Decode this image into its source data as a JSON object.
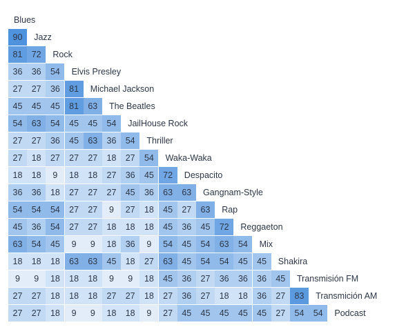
{
  "matrix": {
    "type": "table",
    "labels": [
      "Blues",
      "Jazz",
      "Rock",
      "Elvis Presley",
      "Michael Jackson",
      "The Beatles",
      "JailHouse Rock",
      "Thriller",
      "Waka-Waka",
      "Despacito",
      "Gangnam-Style",
      "Rap",
      "Reggaeton",
      "Mix",
      "Shakira",
      "Transmisión FM",
      "Transmición AM",
      "Podcast"
    ],
    "rows": [
      [],
      [
        90
      ],
      [
        81,
        72
      ],
      [
        36,
        36,
        54
      ],
      [
        27,
        27,
        36,
        81
      ],
      [
        45,
        45,
        45,
        81,
        63
      ],
      [
        54,
        63,
        54,
        45,
        45,
        54
      ],
      [
        27,
        27,
        36,
        45,
        63,
        36,
        54
      ],
      [
        27,
        18,
        27,
        27,
        27,
        18,
        27,
        54
      ],
      [
        18,
        18,
        9,
        18,
        18,
        27,
        36,
        45,
        72
      ],
      [
        36,
        36,
        18,
        27,
        27,
        27,
        45,
        36,
        63,
        63
      ],
      [
        54,
        54,
        54,
        27,
        27,
        9,
        27,
        18,
        45,
        27,
        63
      ],
      [
        45,
        36,
        54,
        27,
        27,
        18,
        18,
        18,
        45,
        36,
        45,
        72
      ],
      [
        63,
        54,
        45,
        9,
        9,
        18,
        36,
        9,
        54,
        45,
        54,
        63,
        54
      ],
      [
        18,
        18,
        18,
        63,
        63,
        45,
        18,
        27,
        63,
        45,
        54,
        54,
        45,
        45
      ],
      [
        9,
        9,
        18,
        18,
        18,
        9,
        9,
        18,
        45,
        36,
        27,
        36,
        36,
        36,
        45
      ],
      [
        27,
        27,
        18,
        18,
        18,
        27,
        27,
        18,
        27,
        36,
        27,
        18,
        18,
        36,
        27,
        83
      ],
      [
        27,
        27,
        18,
        9,
        9,
        18,
        18,
        9,
        27,
        45,
        45,
        45,
        45,
        45,
        27,
        54,
        54
      ]
    ],
    "color_min": "#f2f7fc",
    "color_max": "#4f92dd"
  }
}
